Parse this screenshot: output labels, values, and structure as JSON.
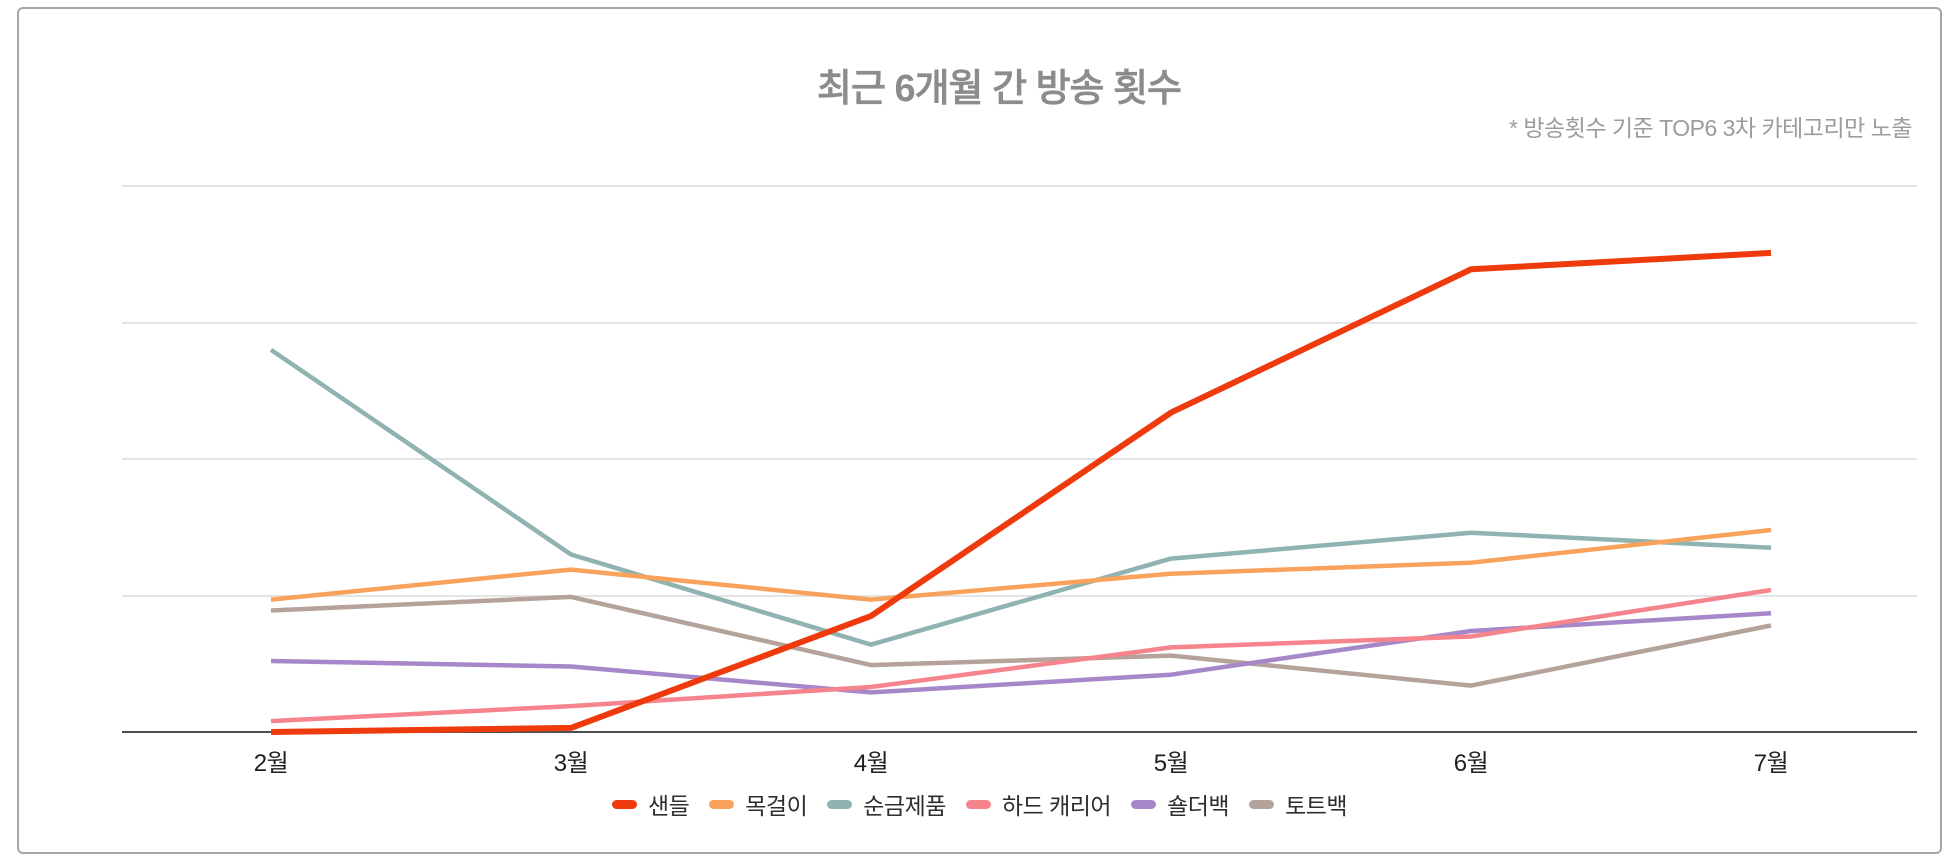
{
  "title": "최근 6개월 간 방송 횟수",
  "subtitle": "* 방송횟수 기준 TOP6 3차 카테고리만 노출",
  "chart_data": {
    "type": "line",
    "title": "최근 6개월 간 방송 횟수",
    "annotation": "* 방송횟수 기준 TOP6 3차 카테고리만 노출",
    "categories": [
      "2월",
      "3월",
      "4월",
      "5월",
      "6월",
      "7월"
    ],
    "series": [
      {
        "name": "샌들",
        "color": "#ee3a0c",
        "values": [
          0,
          0.3,
          8.5,
          23.4,
          33.9,
          35.1
        ]
      },
      {
        "name": "목걸이",
        "color": "#f9a25b",
        "values": [
          9.7,
          11.9,
          9.7,
          11.6,
          12.4,
          14.8
        ]
      },
      {
        "name": "순금제품",
        "color": "#8fb3b0",
        "values": [
          28,
          13,
          6.4,
          12.7,
          14.6,
          13.5
        ]
      },
      {
        "name": "하드 캐리어",
        "color": "#f5848c",
        "values": [
          0.8,
          1.9,
          3.3,
          6.2,
          7.0,
          10.4
        ]
      },
      {
        "name": "숄더백",
        "color": "#a687ca",
        "values": [
          5.2,
          4.8,
          2.9,
          4.2,
          7.4,
          8.7
        ]
      },
      {
        "name": "토트백",
        "color": "#b5a29b",
        "values": [
          8.9,
          9.9,
          4.9,
          5.6,
          3.4,
          7.8
        ]
      }
    ],
    "xlabel": "",
    "ylabel": "",
    "y_tick_labels_visible": false,
    "ylim": [
      0,
      40
    ],
    "y_grid_step": 10,
    "grid": true,
    "legend_position": "bottom"
  },
  "colors": {
    "title_text": "#8c8c8c",
    "subtitle_text": "#9c9c9c",
    "axis_line": "#4f4f4f",
    "gridline": "#e4e4e4",
    "card_border": "#a6a6a6"
  }
}
